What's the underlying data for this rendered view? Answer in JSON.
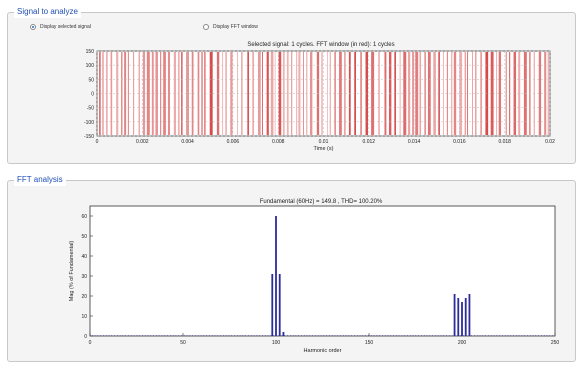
{
  "signal_panel": {
    "title": "Signal to analyze",
    "radio_display_selected": "Display selected signal",
    "radio_display_fft": "Display FFT window",
    "plot_title": "Selected signal: 1 cycles. FFT window (in red): 1 cycles"
  },
  "fft_panel": {
    "title": "FFT analysis",
    "plot_title": "Fundamental (60Hz) = 149.8 , THD= 100.20%"
  },
  "chart_data": [
    {
      "type": "line",
      "title": "Selected signal: 1 cycles. FFT window (in red): 1 cycles",
      "xlabel": "Time (s)",
      "ylabel": "",
      "xlim": [
        0,
        0.02
      ],
      "ylim": [
        -150,
        150
      ],
      "xticks": [
        0,
        0.002,
        0.004,
        0.006,
        0.008,
        0.01,
        0.012,
        0.014,
        0.016,
        0.018,
        0.02
      ],
      "xtick_labels": [
        "0",
        "0.002",
        "0.004",
        "0.006",
        "0.008",
        "0.01",
        "0.012",
        "0.014",
        "0.016",
        "0.018",
        "0.02"
      ],
      "yticks": [
        -150,
        -100,
        -50,
        0,
        50,
        100,
        150
      ],
      "ytick_labels": [
        "-150",
        "-100",
        "-50",
        "0",
        "50",
        "100",
        "150"
      ],
      "grid": true,
      "series": [
        {
          "color": "#d23a3a",
          "description": "dense switching pulses"
        }
      ]
    },
    {
      "type": "bar",
      "title": "Fundamental (60Hz) = 149.8 , THD= 100.20%",
      "xlabel": "Harmonic order",
      "ylabel": "Mag (% of Fundamental)",
      "xlim": [
        0,
        250
      ],
      "ylim": [
        0,
        65
      ],
      "xticks": [
        0,
        50,
        100,
        150,
        200,
        250
      ],
      "xtick_labels": [
        "0",
        "50",
        "100",
        "150",
        "200",
        "250"
      ],
      "yticks": [
        0,
        10,
        20,
        30,
        40,
        50,
        60
      ],
      "ytick_labels": [
        "0",
        "10",
        "20",
        "30",
        "40",
        "50",
        "60"
      ],
      "grid": false,
      "x": [
        98,
        100,
        102,
        104,
        196,
        198,
        200,
        202,
        204
      ],
      "values": [
        31,
        60,
        31,
        2,
        21,
        19,
        17,
        19,
        21
      ],
      "color": "#2c2c9c"
    }
  ]
}
